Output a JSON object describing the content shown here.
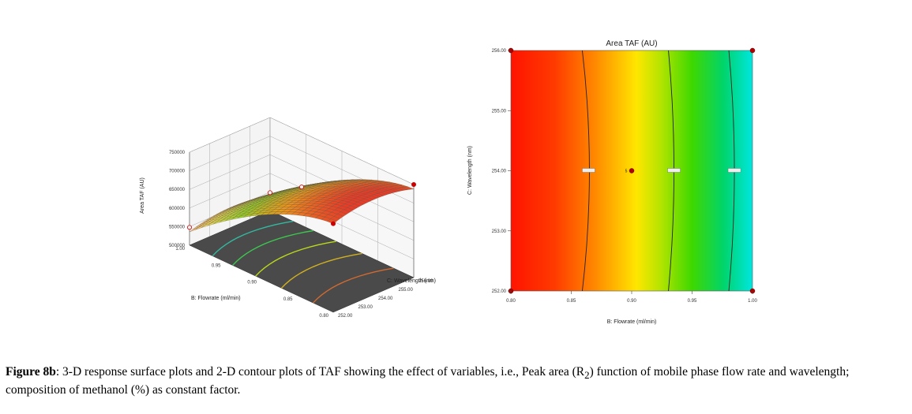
{
  "chart_data": [
    {
      "type": "surface3d",
      "title": "",
      "zlabel": "Area TAF (AU)",
      "xlabel": "B: Flowrate (ml/min)",
      "ylabel": "C: Wavelength (nm)",
      "z_ticks": [
        "750000",
        "700000",
        "650000",
        "600000",
        "550000",
        "500000"
      ],
      "flow_ticks": [
        "1.00",
        "0.95",
        "0.90",
        "0.85",
        "0.80"
      ],
      "wave_ticks": [
        "252.00",
        "253.00",
        "254.00",
        "255.00",
        "256.00"
      ],
      "x_range": [
        0.8,
        1.0
      ],
      "y_range": [
        252,
        256
      ],
      "z_range": [
        500000,
        750000
      ],
      "corner_values": {
        "flow_0.80": 750000,
        "flow_1.00": 548000
      },
      "design_point_value": 700000
    },
    {
      "type": "contour",
      "title": "Area TAF (AU)",
      "xlabel": "B: Flowrate (ml/min)",
      "ylabel": "C: Wavelength (nm)",
      "x_ticks": [
        "0.80",
        "0.85",
        "0.90",
        "0.95",
        "1.00"
      ],
      "x_values": [
        0.8,
        0.85,
        0.9,
        0.95,
        1.0
      ],
      "y_ticks": [
        "252.00",
        "253.00",
        "254.00",
        "255.00",
        "256.00"
      ],
      "y_values": [
        252,
        253,
        254,
        255,
        256
      ],
      "x_range": [
        0.8,
        1.0
      ],
      "y_range": [
        252,
        256
      ],
      "contour_flow_values": [
        0.865,
        0.935,
        0.985
      ],
      "design_points": [
        {
          "x": 0.8,
          "y": 256
        },
        {
          "x": 1.0,
          "y": 256
        },
        {
          "x": 0.8,
          "y": 252
        },
        {
          "x": 1.0,
          "y": 252
        },
        {
          "x": 0.9,
          "y": 254
        }
      ],
      "center_label": "5"
    }
  ],
  "caption": {
    "label": "Figure 8b",
    "text": ": 3-D response surface plots and 2-D contour plots of TAF showing the effect of variables, i.e., Peak area (R",
    "sub": "2",
    "text2": ") function of mobile phase flow rate and wavelength; composition of methanol (%) as constant factor."
  }
}
